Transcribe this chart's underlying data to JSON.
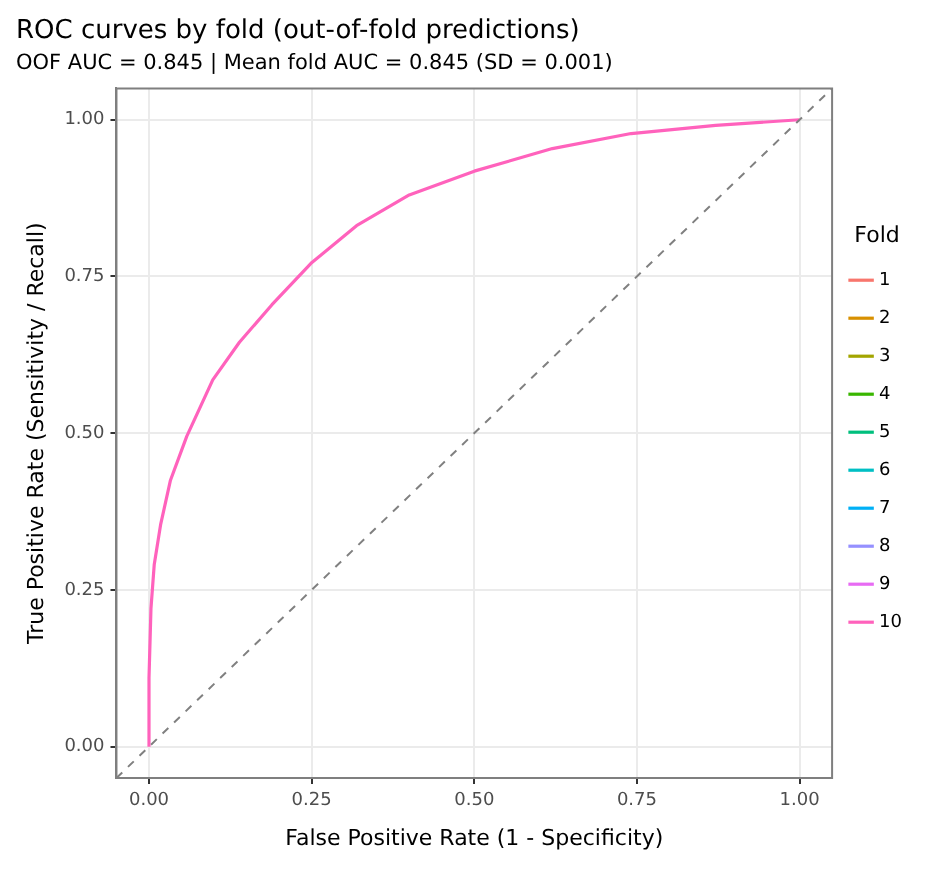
{
  "chart_data": {
    "type": "line",
    "title": "ROC curves by fold (out-of-fold predictions)",
    "subtitle": "OOF AUC = 0.845 | Mean fold AUC = 0.845 (SD = 0.001)",
    "xlabel": "False Positive Rate (1 - Specificity)",
    "ylabel": "True Positive Rate (Sensitivity / Recall)",
    "legend_title": "Fold",
    "legend": "right",
    "grid": true,
    "marker": "none",
    "line_style": "solid",
    "xlim": [
      -0.05,
      1.05
    ],
    "ylim": [
      -0.05,
      1.05
    ],
    "xticks": [
      {
        "value": 0,
        "label": "0.00"
      },
      {
        "value": 0.25,
        "label": "0.25"
      },
      {
        "value": 0.5,
        "label": "0.50"
      },
      {
        "value": 0.75,
        "label": "0.75"
      },
      {
        "value": 1,
        "label": "1.00"
      }
    ],
    "yticks": [
      {
        "value": 0,
        "label": "0.00"
      },
      {
        "value": 0.25,
        "label": "0.25"
      },
      {
        "value": 0.5,
        "label": "0.50"
      },
      {
        "value": 0.75,
        "label": "0.75"
      },
      {
        "value": 1,
        "label": "1.00"
      }
    ],
    "x": [
      0,
      0,
      0.003,
      0.008,
      0.018,
      0.033,
      0.058,
      0.098,
      0.139,
      0.189,
      0.249,
      0.319,
      0.4,
      0.5,
      0.62,
      0.741,
      0.871,
      1
    ],
    "series": [
      {
        "type": "line",
        "x": [
          -0.05,
          1.05
        ],
        "values": [
          -0.05,
          1.05
        ],
        "color": "#808080",
        "line_style": "dashed"
      },
      {
        "name": "1",
        "color": "#f8766d",
        "values": [
          null,
          null,
          null,
          null,
          null,
          null,
          null,
          null,
          null,
          null,
          null,
          null,
          null,
          null,
          null,
          null,
          null,
          null
        ]
      },
      {
        "name": "2",
        "color": "#d89000",
        "values": [
          null,
          null,
          null,
          null,
          null,
          null,
          null,
          null,
          null,
          null,
          null,
          null,
          null,
          null,
          null,
          null,
          null,
          null
        ]
      },
      {
        "name": "3",
        "color": "#a3a500",
        "values": [
          null,
          null,
          null,
          null,
          null,
          null,
          null,
          null,
          null,
          null,
          null,
          null,
          null,
          null,
          null,
          null,
          null,
          null
        ]
      },
      {
        "name": "4",
        "color": "#39b600",
        "values": [
          null,
          null,
          null,
          null,
          null,
          null,
          null,
          null,
          null,
          null,
          null,
          null,
          null,
          null,
          null,
          null,
          null,
          null
        ]
      },
      {
        "name": "5",
        "color": "#00bf7d",
        "values": [
          null,
          null,
          null,
          null,
          null,
          null,
          null,
          null,
          null,
          null,
          null,
          null,
          null,
          null,
          null,
          null,
          null,
          null
        ]
      },
      {
        "name": "6",
        "color": "#00bfc4",
        "values": [
          null,
          null,
          null,
          null,
          null,
          null,
          null,
          null,
          null,
          null,
          null,
          null,
          null,
          null,
          null,
          null,
          null,
          null
        ]
      },
      {
        "name": "7",
        "color": "#00b0f6",
        "values": [
          null,
          null,
          null,
          null,
          null,
          null,
          null,
          null,
          null,
          null,
          null,
          null,
          null,
          null,
          null,
          null,
          null,
          null
        ]
      },
      {
        "name": "8",
        "color": "#9590ff",
        "values": [
          null,
          null,
          null,
          null,
          null,
          null,
          null,
          null,
          null,
          null,
          null,
          null,
          null,
          null,
          null,
          null,
          null,
          null
        ]
      },
      {
        "name": "9",
        "color": "#e76bf3",
        "values": [
          null,
          null,
          null,
          null,
          null,
          null,
          null,
          null,
          null,
          null,
          null,
          null,
          null,
          null,
          null,
          null,
          null,
          null
        ]
      },
      {
        "name": "10",
        "color": "#ff62bc",
        "values": [
          0,
          0.11,
          0.22,
          0.29,
          0.355,
          0.425,
          0.495,
          0.585,
          0.645,
          0.705,
          0.771,
          0.831,
          0.88,
          0.918,
          0.954,
          0.978,
          0.991,
          1
        ]
      }
    ]
  }
}
